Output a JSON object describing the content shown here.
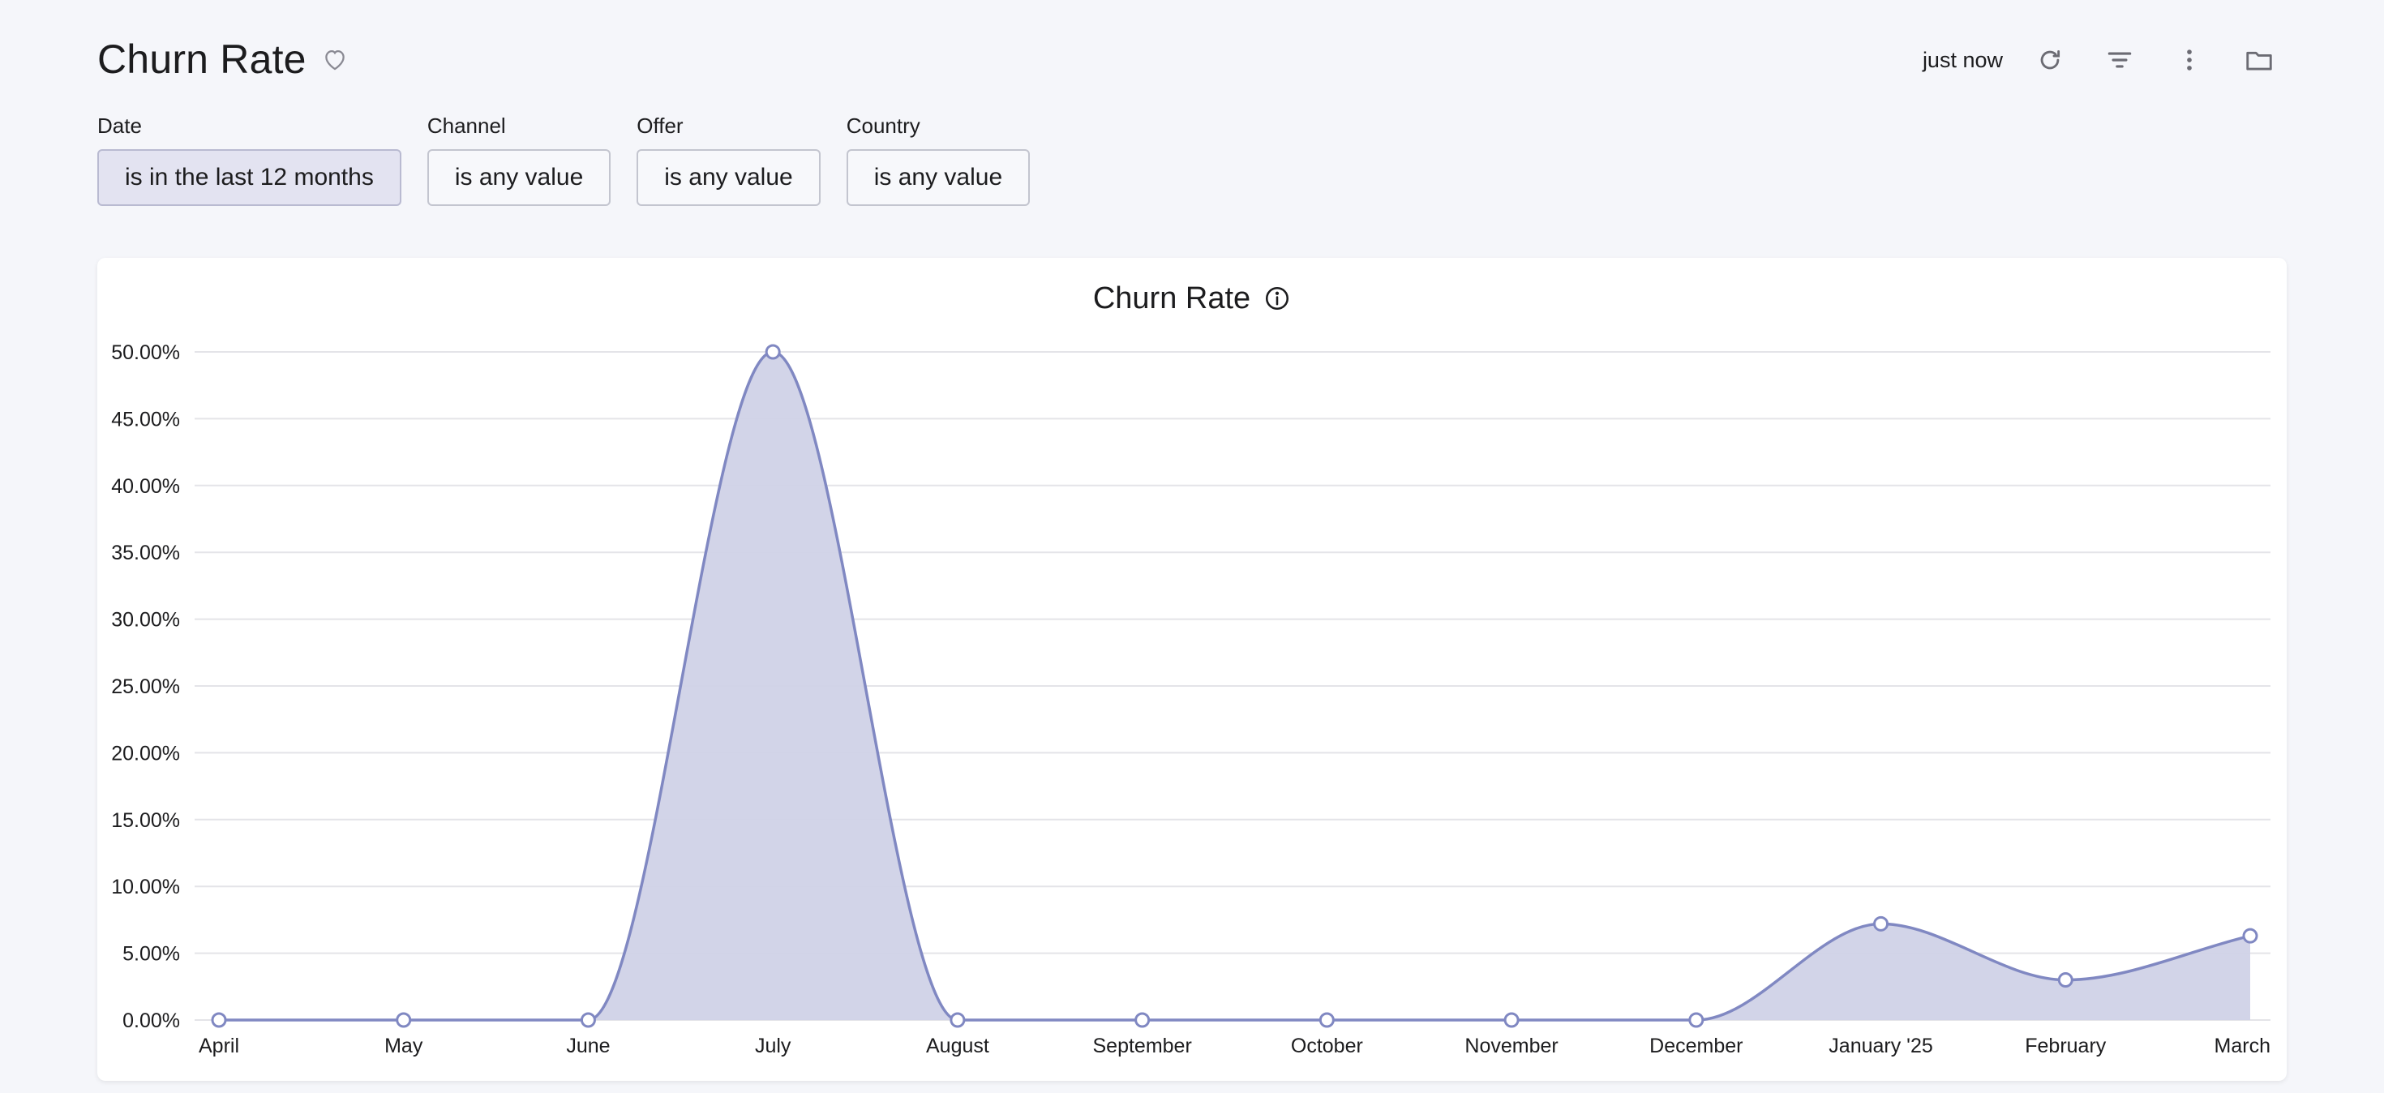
{
  "header": {
    "title": "Churn Rate",
    "updated": "just now",
    "icons": [
      "heart-icon",
      "refresh-icon",
      "filter-icon",
      "more-vertical-icon",
      "folder-icon"
    ]
  },
  "filters": [
    {
      "label": "Date",
      "value": "is in the last 12 months",
      "active": true
    },
    {
      "label": "Channel",
      "value": "is any value",
      "active": false
    },
    {
      "label": "Offer",
      "value": "is any value",
      "active": false
    },
    {
      "label": "Country",
      "value": "is any value",
      "active": false
    }
  ],
  "colors": {
    "series": "#8088c2",
    "area": "#d0d2e7",
    "grid": "#e4e4e8",
    "background": "#f5f6fa"
  },
  "chart_data": {
    "type": "area",
    "title": "Churn Rate",
    "categories": [
      "April",
      "May",
      "June",
      "July",
      "August",
      "September",
      "October",
      "November",
      "December",
      "January '25",
      "February",
      "March"
    ],
    "series": [
      {
        "values": [
          0,
          0,
          0,
          50,
          0,
          0,
          0,
          0,
          0,
          7.2,
          3,
          6.3
        ]
      }
    ],
    "ylim": [
      0,
      50
    ],
    "yticks": [
      "0.00%",
      "5.00%",
      "10.00%",
      "15.00%",
      "20.00%",
      "25.00%",
      "30.00%",
      "35.00%",
      "40.00%",
      "45.00%",
      "50.00%"
    ],
    "grid": true,
    "legend": "none",
    "curve": "smooth"
  }
}
